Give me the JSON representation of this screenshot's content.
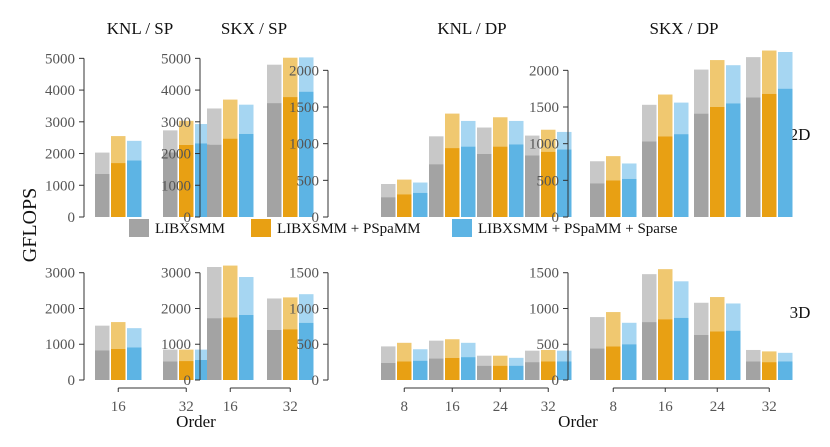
{
  "figure": {
    "ylabel": "GFLOPS",
    "xlabel": "Order",
    "row_labels": [
      "2D",
      "3D"
    ],
    "column_titles": [
      "KNL / SP",
      "SKX / SP",
      "KNL / DP",
      "SKX / DP"
    ]
  },
  "legend": {
    "entries": [
      "LIBXSMM",
      "LIBXSMM + PSpaMM",
      "LIBXSMM + PSpaMM + Sparse"
    ],
    "colors": [
      "#a3a3a3",
      "#e8a013",
      "#5db4e4"
    ],
    "light_colors": [
      "#c8c8c8",
      "#f0c870",
      "#a6d6f2"
    ]
  },
  "chart_data": [
    {
      "type": "bar",
      "title": "KNL / SP",
      "dim": "2D",
      "precision": "SP",
      "categories": [
        "16",
        "32"
      ],
      "ylim": [
        0,
        5200
      ],
      "yticks": [
        0,
        1000,
        2000,
        3000,
        4000,
        5000
      ],
      "series": [
        {
          "name": "LIBXSMM",
          "dark": [
            1360,
            2040
          ],
          "total": [
            2030,
            2730
          ]
        },
        {
          "name": "LIBXSMM + PSpaMM",
          "dark": [
            1700,
            2270
          ],
          "total": [
            2550,
            3030
          ]
        },
        {
          "name": "LIBXSMM + PSpaMM + Sparse",
          "dark": [
            1780,
            2320
          ],
          "total": [
            2400,
            2930
          ]
        }
      ]
    },
    {
      "type": "bar",
      "title": "SKX / SP",
      "dim": "2D",
      "precision": "SP",
      "categories": [
        "16",
        "32"
      ],
      "ylim": [
        0,
        5200
      ],
      "yticks": [
        0,
        1000,
        2000,
        3000,
        4000,
        5000
      ],
      "series": [
        {
          "name": "LIBXSMM",
          "dark": [
            2280,
            3590
          ],
          "total": [
            3420,
            4800
          ]
        },
        {
          "name": "LIBXSMM + PSpaMM",
          "dark": [
            2470,
            3780
          ],
          "total": [
            3700,
            5020
          ]
        },
        {
          "name": "LIBXSMM + PSpaMM + Sparse",
          "dark": [
            2620,
            3950
          ],
          "total": [
            3540,
            5030
          ]
        }
      ]
    },
    {
      "type": "bar",
      "title": "KNL / DP",
      "dim": "2D",
      "precision": "DP",
      "categories": [
        "8",
        "16",
        "24",
        "32"
      ],
      "ylim": [
        0,
        2250
      ],
      "yticks": [
        0,
        500,
        1000,
        1500,
        2000
      ],
      "series": [
        {
          "name": "LIBXSMM",
          "dark": [
            270,
            720,
            860,
            840
          ],
          "total": [
            450,
            1100,
            1220,
            1110
          ]
        },
        {
          "name": "LIBXSMM + PSpaMM",
          "dark": [
            310,
            940,
            960,
            890
          ],
          "total": [
            510,
            1410,
            1360,
            1190
          ]
        },
        {
          "name": "LIBXSMM + PSpaMM + Sparse",
          "dark": [
            330,
            960,
            990,
            920
          ],
          "total": [
            470,
            1310,
            1310,
            1160
          ]
        }
      ]
    },
    {
      "type": "bar",
      "title": "SKX / DP",
      "dim": "2D",
      "precision": "DP",
      "categories": [
        "8",
        "16",
        "24",
        "32"
      ],
      "ylim": [
        0,
        2250
      ],
      "yticks": [
        0,
        500,
        1000,
        1500,
        2000
      ],
      "series": [
        {
          "name": "LIBXSMM",
          "dark": [
            460,
            1030,
            1410,
            1630
          ],
          "total": [
            760,
            1530,
            2010,
            2180
          ]
        },
        {
          "name": "LIBXSMM + PSpaMM",
          "dark": [
            500,
            1100,
            1500,
            1680
          ],
          "total": [
            830,
            1670,
            2140,
            2270
          ]
        },
        {
          "name": "LIBXSMM + PSpaMM + Sparse",
          "dark": [
            520,
            1130,
            1550,
            1750
          ],
          "total": [
            730,
            1560,
            2070,
            2250
          ]
        }
      ]
    },
    {
      "type": "bar",
      "title": "KNL / SP",
      "dim": "3D",
      "precision": "SP",
      "categories": [
        "16",
        "32"
      ],
      "ylim": [
        0,
        3300
      ],
      "yticks": [
        0,
        1000,
        2000,
        3000
      ],
      "series": [
        {
          "name": "LIBXSMM",
          "dark": [
            830,
            520
          ],
          "total": [
            1520,
            850
          ]
        },
        {
          "name": "LIBXSMM + PSpaMM",
          "dark": [
            870,
            530
          ],
          "total": [
            1620,
            850
          ]
        },
        {
          "name": "LIBXSMM + PSpaMM + Sparse",
          "dark": [
            910,
            560
          ],
          "total": [
            1450,
            850
          ]
        }
      ]
    },
    {
      "type": "bar",
      "title": "SKX / SP",
      "dim": "3D",
      "precision": "SP",
      "categories": [
        "16",
        "32"
      ],
      "ylim": [
        0,
        3300
      ],
      "yticks": [
        0,
        1000,
        2000,
        3000
      ],
      "series": [
        {
          "name": "LIBXSMM",
          "dark": [
            1730,
            1400
          ],
          "total": [
            3160,
            2280
          ]
        },
        {
          "name": "LIBXSMM + PSpaMM",
          "dark": [
            1750,
            1420
          ],
          "total": [
            3200,
            2310
          ]
        },
        {
          "name": "LIBXSMM + PSpaMM + Sparse",
          "dark": [
            1820,
            1600
          ],
          "total": [
            2880,
            2400
          ]
        }
      ]
    },
    {
      "type": "bar",
      "title": "KNL / DP",
      "dim": "3D",
      "precision": "DP",
      "categories": [
        "8",
        "16",
        "24",
        "32"
      ],
      "ylim": [
        0,
        1650
      ],
      "yticks": [
        0,
        500,
        1000,
        1500
      ],
      "series": [
        {
          "name": "LIBXSMM",
          "dark": [
            240,
            300,
            200,
            250
          ],
          "total": [
            470,
            550,
            340,
            410
          ]
        },
        {
          "name": "LIBXSMM + PSpaMM",
          "dark": [
            260,
            310,
            200,
            260
          ],
          "total": [
            520,
            570,
            340,
            420
          ]
        },
        {
          "name": "LIBXSMM + PSpaMM + Sparse",
          "dark": [
            270,
            320,
            200,
            260
          ],
          "total": [
            430,
            520,
            310,
            410
          ]
        }
      ]
    },
    {
      "type": "bar",
      "title": "SKX / DP",
      "dim": "3D",
      "precision": "DP",
      "categories": [
        "8",
        "16",
        "24",
        "32"
      ],
      "ylim": [
        0,
        1650
      ],
      "yticks": [
        0,
        500,
        1000,
        1500
      ],
      "series": [
        {
          "name": "LIBXSMM",
          "dark": [
            440,
            810,
            630,
            260
          ],
          "total": [
            880,
            1480,
            1080,
            420
          ]
        },
        {
          "name": "LIBXSMM + PSpaMM",
          "dark": [
            470,
            850,
            680,
            250
          ],
          "total": [
            950,
            1550,
            1160,
            400
          ]
        },
        {
          "name": "LIBXSMM + PSpaMM + Sparse",
          "dark": [
            500,
            870,
            690,
            260
          ],
          "total": [
            800,
            1380,
            1070,
            380
          ]
        }
      ]
    }
  ]
}
